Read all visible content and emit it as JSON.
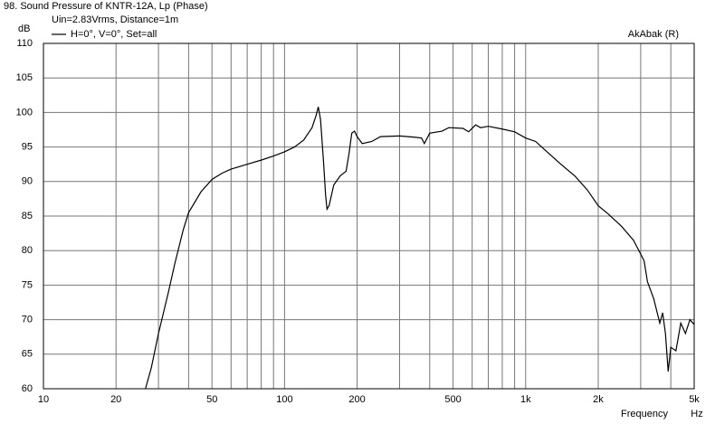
{
  "chart_data": {
    "type": "line",
    "title": "98. Sound Pressure of KNTR-12A, Lp (Phase)",
    "subtitle": "Uin=2.83Vrms, Distance=1m",
    "annotation": "AkAbak (R)",
    "ylabel": "dB",
    "xlabel": "Frequency",
    "xunit": "Hz",
    "xscale": "log",
    "grid": true,
    "legend": "top-left",
    "xlim": [
      10,
      5000
    ],
    "ylim": [
      60,
      110
    ],
    "yticks": [
      60,
      65,
      70,
      75,
      80,
      85,
      90,
      95,
      100,
      105,
      110
    ],
    "xticks": [
      10,
      20,
      50,
      100,
      200,
      500,
      {
        "value": 1000,
        "label": "1k"
      },
      {
        "value": 2000,
        "label": "2k"
      },
      {
        "value": 5000,
        "label": "5k"
      }
    ],
    "xminor": [
      30,
      40,
      60,
      70,
      80,
      90,
      300,
      400,
      600,
      700,
      800,
      900,
      3000,
      4000
    ],
    "x": [
      26.5,
      28,
      30,
      33,
      35,
      38,
      40,
      45,
      50,
      55,
      60,
      70,
      80,
      90,
      100,
      110,
      120,
      130,
      135,
      138,
      141,
      145,
      148,
      150,
      153,
      160,
      170,
      180,
      185,
      190,
      195,
      200,
      210,
      230,
      250,
      300,
      350,
      370,
      380,
      400,
      450,
      480,
      550,
      580,
      620,
      650,
      700,
      800,
      900,
      1000,
      1100,
      1200,
      1400,
      1600,
      1800,
      2000,
      2200,
      2500,
      2800,
      3000,
      3100,
      3200,
      3400,
      3600,
      3700,
      3800,
      3900,
      4000,
      4200,
      4400,
      4600,
      4800,
      5000
    ],
    "series": [
      {
        "name": "H=0°, V=0°, Set=all",
        "color": "#000000",
        "values": [
          60,
          63,
          68,
          74,
          78,
          83,
          85.5,
          88.5,
          90.3,
          91.2,
          91.8,
          92.5,
          93.1,
          93.7,
          94.3,
          95,
          96,
          97.8,
          99.5,
          100.8,
          99,
          93,
          88,
          86,
          86.5,
          89.5,
          90.8,
          91.5,
          94,
          97,
          97.3,
          96.5,
          95.5,
          95.8,
          96.5,
          96.6,
          96.4,
          96.3,
          95.5,
          97,
          97.3,
          97.8,
          97.7,
          97.2,
          98.2,
          97.8,
          98,
          97.6,
          97.2,
          96.3,
          95.8,
          94.6,
          92.5,
          90.8,
          88.8,
          86.5,
          85.3,
          83.5,
          81.5,
          79.5,
          78.5,
          75.5,
          73,
          69.5,
          71,
          68,
          62.5,
          66,
          65.5,
          69.5,
          68,
          70,
          69.3
        ]
      }
    ]
  }
}
